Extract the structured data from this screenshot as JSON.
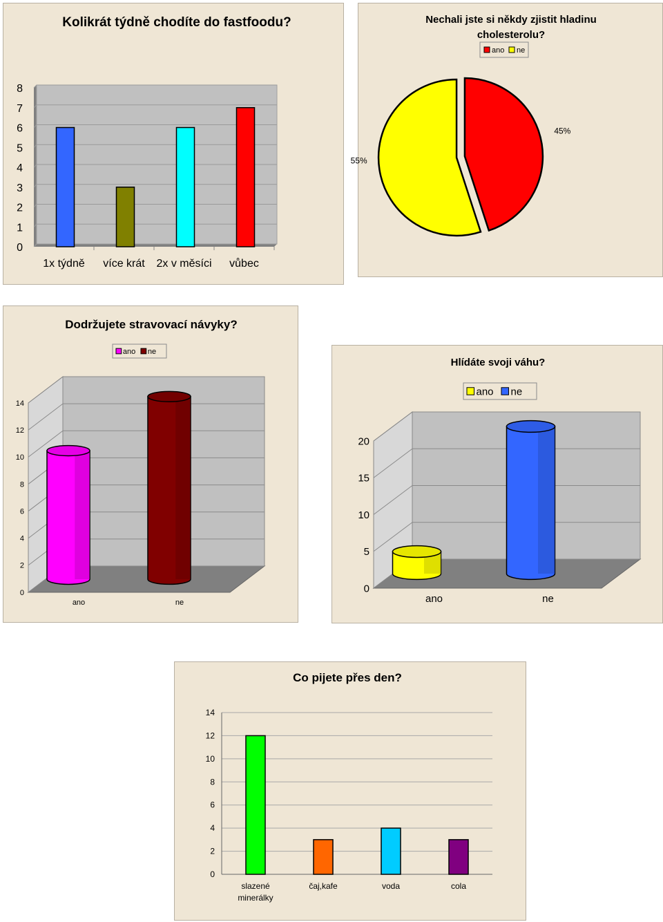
{
  "charts": [
    {
      "id": "fastfood",
      "chart_data": {
        "type": "bar",
        "title": "Kolikrát týdně chodíte do fastfoodu?",
        "categories": [
          "1x týdně",
          "více krát",
          "2x v měsíci",
          "vůbec"
        ],
        "values": [
          6,
          3,
          6,
          7
        ],
        "colors": [
          "#3366ff",
          "#808000",
          "#00ffff",
          "#ff0000"
        ],
        "yticks": [
          "0",
          "1",
          "2",
          "3",
          "4",
          "5",
          "6",
          "7",
          "8"
        ],
        "ylim": [
          0,
          8
        ],
        "grid": true,
        "legend": "none",
        "style": "3d"
      }
    },
    {
      "id": "cholesterol",
      "chart_data": {
        "type": "pie",
        "title": "Nechali jste si někdy zjistit hladinu cholesterolu?",
        "title_lines": [
          "Nechali jste si někdy zjistit hladinu",
          "cholesterolu?"
        ],
        "labels": [
          "ano",
          "ne"
        ],
        "values": [
          45,
          55
        ],
        "value_labels": [
          "45%",
          "55%"
        ],
        "colors": [
          "#ff0000",
          "#ffff00"
        ],
        "legend": "top-center",
        "exploded": true
      }
    },
    {
      "id": "habits",
      "chart_data": {
        "type": "bar",
        "title": "Dodržujete stravovací návyky?",
        "categories": [
          "ano",
          "ne"
        ],
        "values": [
          9.5,
          13.5
        ],
        "colors": [
          "#ff00ff",
          "#800000"
        ],
        "yticks": [
          "0",
          "2",
          "4",
          "6",
          "8",
          "10",
          "12",
          "14"
        ],
        "ylim": [
          0,
          14
        ],
        "legend": "top-left",
        "style": "3d-cylinder"
      }
    },
    {
      "id": "weight",
      "chart_data": {
        "type": "bar",
        "title": "Hlídáte svoji váhu?",
        "categories": [
          "ano",
          "ne"
        ],
        "values": [
          3,
          20
        ],
        "colors": [
          "#ffff00",
          "#3366ff"
        ],
        "yticks": [
          "0",
          "5",
          "10",
          "15",
          "20"
        ],
        "ylim": [
          0,
          20
        ],
        "legend": "top-right",
        "style": "3d-cylinder"
      }
    },
    {
      "id": "drinks",
      "chart_data": {
        "type": "bar",
        "title": "Co pijete přes den?",
        "categories": [
          "slazené minerálky",
          "čaj,kafe",
          "voda",
          "cola"
        ],
        "category_lines": [
          [
            "slazené",
            "minerálky"
          ],
          [
            "čaj,kafe"
          ],
          [
            "voda"
          ],
          [
            "cola"
          ]
        ],
        "values": [
          12,
          3,
          4,
          3
        ],
        "colors": [
          "#00ff00",
          "#ff6600",
          "#00ccff",
          "#800080"
        ],
        "yticks": [
          "0",
          "2",
          "4",
          "6",
          "8",
          "10",
          "12",
          "14"
        ],
        "ylim": [
          0,
          14
        ],
        "grid": true,
        "legend": "none"
      }
    }
  ]
}
